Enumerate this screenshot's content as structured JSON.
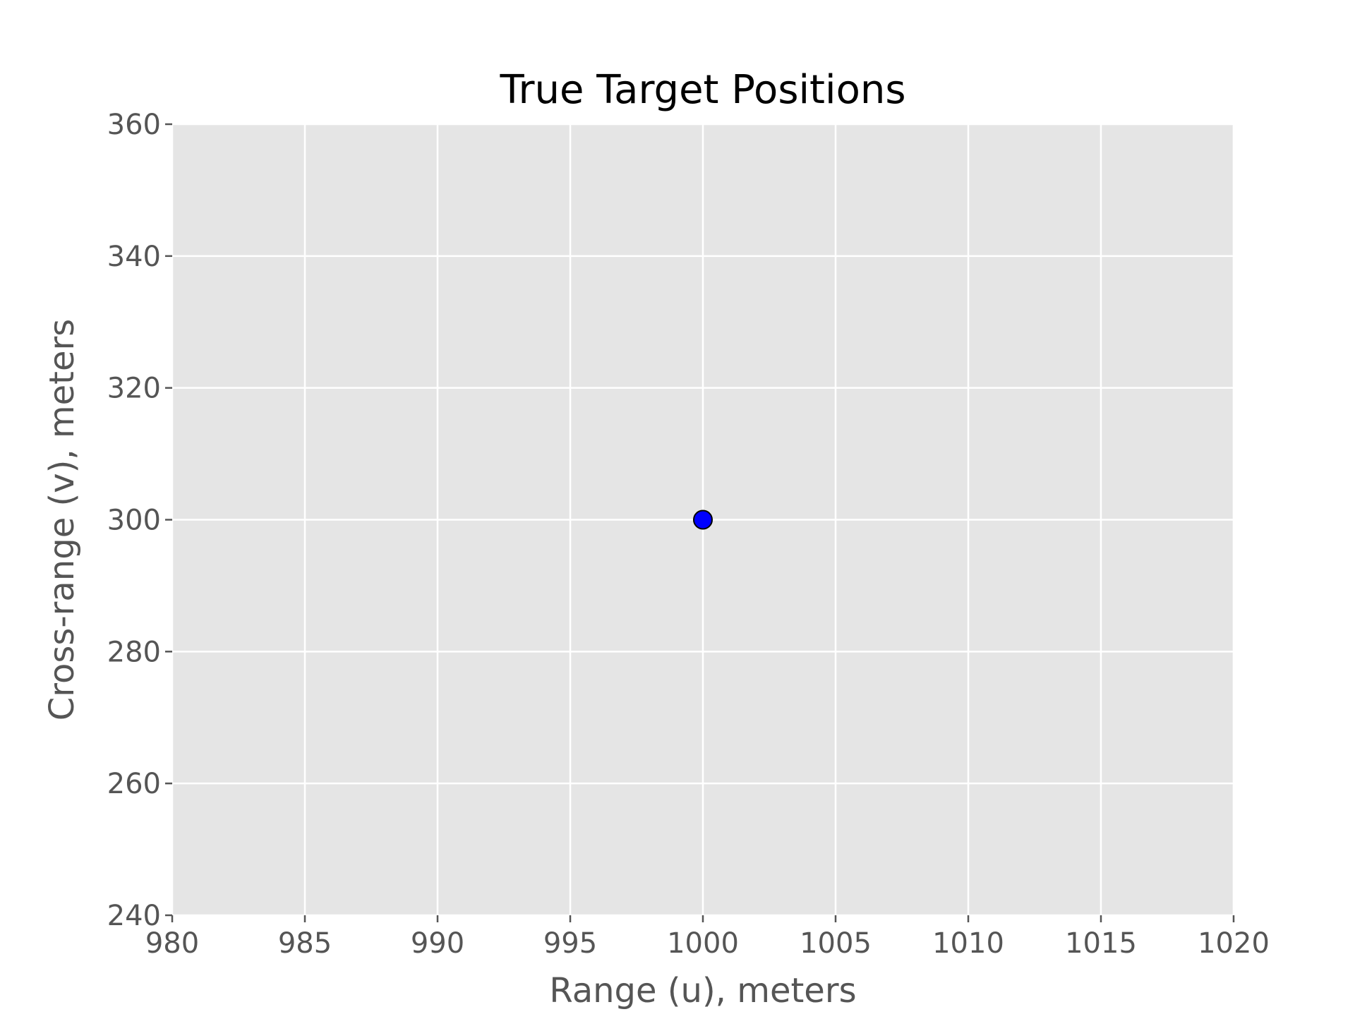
{
  "chart_data": {
    "type": "scatter",
    "title": "True Target Positions",
    "xlabel": "Range (u), meters",
    "ylabel": "Cross-range (v), meters",
    "xlim": [
      980,
      1020
    ],
    "ylim": [
      240,
      360
    ],
    "xticks": [
      980,
      985,
      990,
      995,
      1000,
      1005,
      1010,
      1015,
      1020
    ],
    "yticks": [
      240,
      260,
      280,
      300,
      320,
      340,
      360
    ],
    "grid": true,
    "series": [
      {
        "points": [
          {
            "x": 1000,
            "y": 300
          }
        ],
        "color": "#0000ff",
        "edgecolor": "#000000"
      }
    ],
    "colors": {
      "plot_background": "#e5e5e5",
      "grid": "#ffffff",
      "tick_text": "#555555",
      "title_text": "#000000"
    }
  }
}
